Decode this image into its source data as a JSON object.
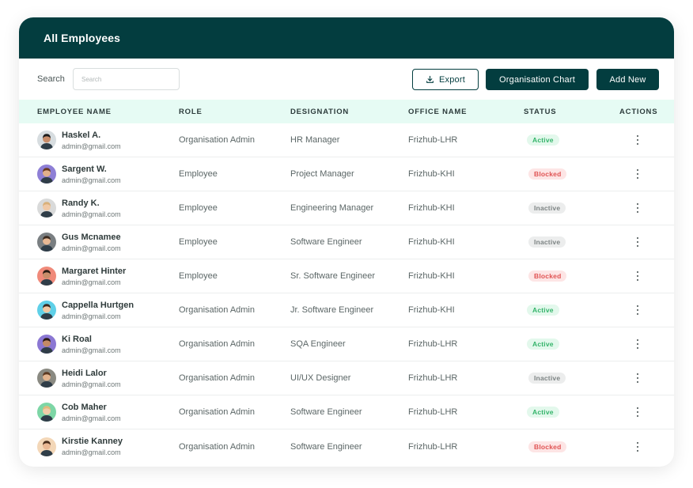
{
  "header": {
    "title": "All Employees"
  },
  "toolbar": {
    "search_label": "Search",
    "search_placeholder": "Search",
    "search_value": "",
    "export_label": "Export",
    "export_icon": "download-icon",
    "org_chart_label": "Organisation Chart",
    "add_new_label": "Add New"
  },
  "columns": {
    "name": "EMPLOYEE NAME",
    "role": "ROLE",
    "designation": "DESIGNATION",
    "office": "OFFICE NAME",
    "status": "STATUS",
    "actions": "ACTIONS"
  },
  "colors": {
    "primary": "#033d3f",
    "header_row": "#e6fbf4",
    "active": "#34b46a",
    "blocked": "#e05353",
    "inactive": "#7c8383"
  },
  "rows": [
    {
      "name": "Haskel A.",
      "email": "admin@gmail.com",
      "role": "Organisation Admin",
      "designation": "HR Manager",
      "office": "Frizhub-LHR",
      "status": "Active",
      "avatar_bg": "#d7dde0",
      "skin": "#c98d6a",
      "hair": "#1d1d1d"
    },
    {
      "name": "Sargent W.",
      "email": "admin@gmail.com",
      "role": "Employee",
      "designation": "Project Manager",
      "office": "Frizhub-KHI",
      "status": "Blocked",
      "avatar_bg": "#8e7fd6",
      "skin": "#e2b08c",
      "hair": "#6a3b1f"
    },
    {
      "name": "Randy K.",
      "email": "admin@gmail.com",
      "role": "Employee",
      "designation": "Engineering Manager",
      "office": "Frizhub-KHI",
      "status": "Inactive",
      "avatar_bg": "#d9dada",
      "skin": "#f0c9a6",
      "hair": "#d8b07a"
    },
    {
      "name": "Gus Mcnamee",
      "email": "admin@gmail.com",
      "role": "Employee",
      "designation": "Software Engineer",
      "office": "Frizhub-KHI",
      "status": "Inactive",
      "avatar_bg": "#7a7f82",
      "skin": "#e7b894",
      "hair": "#3b2a1e"
    },
    {
      "name": "Margaret Hinter",
      "email": "admin@gmail.com",
      "role": "Employee",
      "designation": "Sr. Software Engineer",
      "office": "Frizhub-KHI",
      "status": "Blocked",
      "avatar_bg": "#f08a7a",
      "skin": "#c98d6a",
      "hair": "#2a1b14"
    },
    {
      "name": "Cappella Hurtgen",
      "email": "admin@gmail.com",
      "role": "Organisation Admin",
      "designation": "Jr. Software Engineer",
      "office": "Frizhub-KHI",
      "status": "Active",
      "avatar_bg": "#5fd0e8",
      "skin": "#f1c7a2",
      "hair": "#3a2a20"
    },
    {
      "name": "Ki Roal",
      "email": "admin@gmail.com",
      "role": "Organisation Admin",
      "designation": "SQA Engineer",
      "office": "Frizhub-LHR",
      "status": "Active",
      "avatar_bg": "#8b77d3",
      "skin": "#c48a66",
      "hair": "#2b1a13"
    },
    {
      "name": "Heidi Lalor",
      "email": "admin@gmail.com",
      "role": "Organisation Admin",
      "designation": "UI/UX Designer",
      "office": "Frizhub-LHR",
      "status": "Inactive",
      "avatar_bg": "#8a8a82",
      "skin": "#e3b48e",
      "hair": "#5c3a22"
    },
    {
      "name": "Cob Maher",
      "email": "admin@gmail.com",
      "role": "Organisation Admin",
      "designation": "Software Engineer",
      "office": "Frizhub-LHR",
      "status": "Active",
      "avatar_bg": "#7dd6a6",
      "skin": "#f1cca8",
      "hair": "#e0b97c"
    },
    {
      "name": "Kirstie Kanney",
      "email": "admin@gmail.com",
      "role": "Organisation Admin",
      "designation": "Software Engineer",
      "office": "Frizhub-LHR",
      "status": "Blocked",
      "avatar_bg": "#f3d7b8",
      "skin": "#eab894",
      "hair": "#4a2e1c"
    }
  ]
}
